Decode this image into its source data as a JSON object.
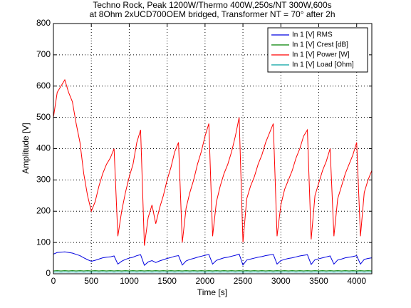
{
  "chart_data": {
    "type": "line",
    "title": [
      "Techno Rock, Peak 1200W/Thermo 400W,250s/NT 300W,600s",
      "at 8Ohm 2xUCD700OEM bridged, Transformer NT = 70° after 2h"
    ],
    "xlabel": "Time [s]",
    "ylabel": "Amplitude [V]",
    "xlim": [
      0,
      4200
    ],
    "ylim": [
      0,
      800
    ],
    "xticks": [
      0,
      500,
      1000,
      1500,
      2000,
      2500,
      3000,
      3500,
      4000
    ],
    "yticks": [
      0,
      100,
      200,
      300,
      400,
      500,
      600,
      700,
      800
    ],
    "grid": true,
    "legend": "northeast",
    "x": [
      0,
      50,
      100,
      150,
      200,
      250,
      300,
      350,
      400,
      450,
      500,
      550,
      600,
      650,
      700,
      750,
      800,
      850,
      900,
      950,
      1000,
      1050,
      1100,
      1150,
      1200,
      1250,
      1300,
      1350,
      1400,
      1450,
      1500,
      1550,
      1600,
      1650,
      1700,
      1750,
      1800,
      1850,
      1900,
      1950,
      2000,
      2050,
      2100,
      2150,
      2200,
      2250,
      2300,
      2350,
      2400,
      2450,
      2500,
      2550,
      2600,
      2650,
      2700,
      2750,
      2800,
      2850,
      2900,
      2950,
      3000,
      3050,
      3100,
      3150,
      3200,
      3250,
      3300,
      3350,
      3400,
      3450,
      3500,
      3550,
      3600,
      3650,
      3700,
      3750,
      3800,
      3850,
      3900,
      3950,
      4000,
      4050,
      4100,
      4150,
      4200
    ],
    "series": [
      {
        "name": "In 1 [V]  RMS",
        "color": "#0000e0",
        "values": [
          63,
          68,
          69,
          70,
          68,
          66,
          62,
          58,
          51,
          45,
          40,
          43,
          47,
          51,
          53,
          54,
          57,
          31,
          40,
          46,
          50,
          53,
          58,
          61,
          27,
          38,
          42,
          36,
          41,
          45,
          49,
          52,
          56,
          58,
          28,
          41,
          46,
          49,
          53,
          56,
          59,
          62,
          31,
          43,
          47,
          51,
          53,
          56,
          59,
          63,
          28,
          44,
          47,
          50,
          53,
          55,
          58,
          60,
          62,
          31,
          42,
          46,
          49,
          51,
          54,
          57,
          59,
          61,
          30,
          45,
          48,
          51,
          54,
          57,
          31,
          44,
          47,
          51,
          53,
          55,
          58,
          31,
          46,
          49,
          51
        ]
      },
      {
        "name": "In 1 [V]  Crest [dB]",
        "color": "#008000",
        "values": [
          9,
          10,
          9,
          10,
          9,
          10,
          9,
          10,
          9,
          10,
          9,
          10,
          9,
          10,
          9,
          10,
          9,
          10,
          9,
          10,
          9,
          10,
          9,
          10,
          9,
          10,
          9,
          10,
          9,
          10,
          9,
          10,
          9,
          10,
          9,
          10,
          9,
          10,
          9,
          10,
          9,
          10,
          9,
          10,
          9,
          10,
          9,
          10,
          9,
          10,
          9,
          10,
          9,
          10,
          9,
          10,
          9,
          10,
          9,
          10,
          9,
          10,
          9,
          10,
          9,
          10,
          9,
          10,
          9,
          10,
          9,
          10,
          9,
          10,
          9,
          10,
          9,
          10,
          9,
          10,
          9,
          10,
          9,
          10,
          9
        ]
      },
      {
        "name": "In 1 [V]  Power [W]",
        "color": "#ff0000",
        "values": [
          500,
          580,
          600,
          620,
          580,
          550,
          480,
          420,
          320,
          250,
          200,
          230,
          280,
          320,
          350,
          370,
          400,
          120,
          200,
          260,
          310,
          350,
          420,
          460,
          90,
          180,
          220,
          160,
          210,
          250,
          300,
          340,
          390,
          420,
          100,
          210,
          260,
          300,
          350,
          390,
          440,
          480,
          120,
          230,
          280,
          320,
          350,
          390,
          440,
          500,
          100,
          240,
          280,
          310,
          350,
          380,
          420,
          450,
          480,
          120,
          220,
          270,
          300,
          330,
          370,
          400,
          440,
          460,
          110,
          250,
          290,
          330,
          360,
          400,
          120,
          240,
          280,
          320,
          350,
          380,
          420,
          120,
          260,
          300,
          330
        ]
      },
      {
        "name": "In 1 [V]  Load [Ohm]",
        "color": "#00a0a0",
        "values": [
          5,
          6,
          5,
          6,
          5,
          6,
          5,
          6,
          5,
          6,
          5,
          6,
          5,
          6,
          5,
          6,
          5,
          6,
          5,
          6,
          5,
          6,
          5,
          6,
          5,
          6,
          5,
          6,
          5,
          6,
          5,
          6,
          5,
          6,
          5,
          6,
          5,
          6,
          5,
          6,
          5,
          6,
          5,
          6,
          5,
          6,
          5,
          6,
          5,
          6,
          5,
          6,
          5,
          6,
          5,
          6,
          5,
          6,
          5,
          6,
          5,
          6,
          5,
          6,
          5,
          6,
          5,
          6,
          5,
          6,
          5,
          6,
          5,
          6,
          5,
          6,
          5,
          6,
          5,
          6,
          5,
          6,
          5,
          6,
          5
        ]
      }
    ]
  }
}
